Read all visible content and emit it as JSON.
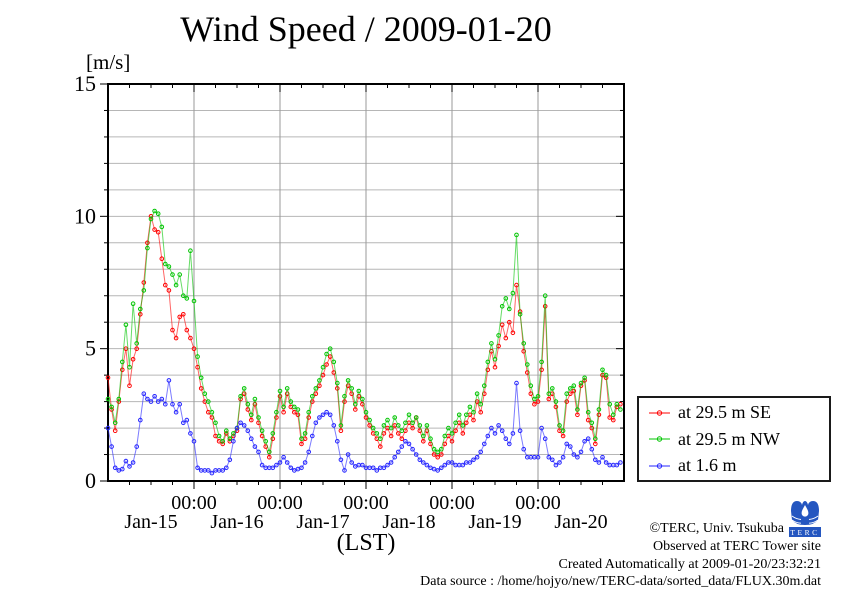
{
  "title": "Wind Speed / 2009-01-20",
  "y_axis": {
    "unit_label": "[m/s]",
    "min": 0,
    "max": 15,
    "major_ticks": [
      0,
      5,
      10,
      15
    ],
    "minor_step": 1
  },
  "x_axis": {
    "label": "(LST)",
    "midnight_label": "00:00",
    "day_labels": [
      "Jan-15",
      "Jan-16",
      "Jan-17",
      "Jan-18",
      "Jan-19",
      "Jan-20"
    ],
    "minor_tick_hours": 6
  },
  "legend": {
    "items": [
      {
        "label": "at 29.5 m SE",
        "color": "#ff0000"
      },
      {
        "label": "at 29.5 m NW",
        "color": "#00c400"
      },
      {
        "label": "at 1.6 m",
        "color": "#2424ff"
      }
    ]
  },
  "footer": {
    "copyright": "©TERC, Univ. Tsukuba",
    "observed": "Observed at TERC Tower site",
    "created": "Created Automatically at 2009-01-20/23:32:21",
    "datasource": "Data source : /home/hojyo/new/TERC-data/sorted_data/FLUX.30m.dat",
    "logo_text": "TERC",
    "logo_color": "#2456c0"
  },
  "chart_data": {
    "type": "line",
    "title": "Wind Speed / 2009-01-20",
    "xlabel": "(LST)",
    "ylabel": "m/s",
    "ylim": [
      0,
      15
    ],
    "grid": true,
    "legend_position": "outside-right-bottom",
    "x_start": "Jan-15 00:00",
    "x_end": "Jan-21 00:00",
    "sample_interval_hours": 1,
    "day_labels": [
      "Jan-15",
      "Jan-16",
      "Jan-17",
      "Jan-18",
      "Jan-19",
      "Jan-20"
    ],
    "series": [
      {
        "name": "at 29.5 m SE",
        "color": "#ff0000",
        "values": [
          3.9,
          2.7,
          1.9,
          3.0,
          4.2,
          5.0,
          3.6,
          4.6,
          5.0,
          6.3,
          7.5,
          9.0,
          10.0,
          9.5,
          9.4,
          8.4,
          7.4,
          7.2,
          5.7,
          5.4,
          6.2,
          6.3,
          5.7,
          5.4,
          5.0,
          4.3,
          3.5,
          3.0,
          2.6,
          2.4,
          1.7,
          1.5,
          1.4,
          1.8,
          1.5,
          1.7,
          1.9,
          3.1,
          3.3,
          2.7,
          2.3,
          2.9,
          2.2,
          1.7,
          1.3,
          0.9,
          1.6,
          2.4,
          3.2,
          2.6,
          3.3,
          2.8,
          2.6,
          2.5,
          1.4,
          1.6,
          2.4,
          3.0,
          3.3,
          3.6,
          4.0,
          4.4,
          4.7,
          4.1,
          3.5,
          1.9,
          3.0,
          3.6,
          3.3,
          2.7,
          3.2,
          2.9,
          2.4,
          2.1,
          1.8,
          1.6,
          1.3,
          1.8,
          2.0,
          1.7,
          2.1,
          1.8,
          1.6,
          1.9,
          2.2,
          2.0,
          2.4,
          1.9,
          1.5,
          1.9,
          1.4,
          1.0,
          0.9,
          1.0,
          1.4,
          1.7,
          1.5,
          1.9,
          2.2,
          1.8,
          2.2,
          2.5,
          2.3,
          3.0,
          2.6,
          3.3,
          4.2,
          4.9,
          4.3,
          5.1,
          5.9,
          5.4,
          6.0,
          5.6,
          7.4,
          6.4,
          4.9,
          4.1,
          3.3,
          2.9,
          3.0,
          4.2,
          6.6,
          3.1,
          3.3,
          2.8,
          1.9,
          1.7,
          3.0,
          3.3,
          3.4,
          2.5,
          3.6,
          3.8,
          2.3,
          2.0,
          1.4,
          2.5,
          4.0,
          3.9,
          2.4,
          2.3,
          2.8,
          2.9
        ]
      },
      {
        "name": "at 29.5 m NW",
        "color": "#00c400",
        "values": [
          3.1,
          2.8,
          2.2,
          3.1,
          4.5,
          5.9,
          4.3,
          6.7,
          5.2,
          6.5,
          7.2,
          8.8,
          9.9,
          10.2,
          10.1,
          9.6,
          8.2,
          8.1,
          7.8,
          7.4,
          7.8,
          7.0,
          6.9,
          8.7,
          6.8,
          4.7,
          3.9,
          3.3,
          3.0,
          2.6,
          2.2,
          1.7,
          1.5,
          1.9,
          1.6,
          1.8,
          2.0,
          3.2,
          3.5,
          2.9,
          2.5,
          3.1,
          2.4,
          1.9,
          1.5,
          1.1,
          1.8,
          2.6,
          3.4,
          2.8,
          3.5,
          3.0,
          2.8,
          2.7,
          1.6,
          1.8,
          2.6,
          3.2,
          3.5,
          3.8,
          4.3,
          4.8,
          5.0,
          4.5,
          3.7,
          2.1,
          3.2,
          3.8,
          3.5,
          2.9,
          3.4,
          3.1,
          2.6,
          2.3,
          2.0,
          1.8,
          1.6,
          2.1,
          2.3,
          2.0,
          2.4,
          2.1,
          1.9,
          2.2,
          2.5,
          2.2,
          2.4,
          2.1,
          1.7,
          2.1,
          1.6,
          1.2,
          1.1,
          1.2,
          1.7,
          2.0,
          1.8,
          2.2,
          2.5,
          2.1,
          2.5,
          2.8,
          2.6,
          3.3,
          2.9,
          3.6,
          4.5,
          5.2,
          4.6,
          5.5,
          6.6,
          6.9,
          6.5,
          7.1,
          9.3,
          6.3,
          5.2,
          4.4,
          3.6,
          3.1,
          3.2,
          4.5,
          7.0,
          3.3,
          3.5,
          3.0,
          2.1,
          1.9,
          3.3,
          3.5,
          3.6,
          2.7,
          3.7,
          3.9,
          2.6,
          2.2,
          1.6,
          2.7,
          4.2,
          4.0,
          2.9,
          2.5,
          2.9,
          2.7
        ]
      },
      {
        "name": "at 1.6 m",
        "color": "#2424ff",
        "values": [
          2.0,
          1.3,
          0.5,
          0.4,
          0.45,
          0.75,
          0.55,
          0.7,
          1.3,
          2.3,
          3.3,
          3.1,
          3.0,
          3.2,
          3.0,
          3.1,
          2.9,
          3.8,
          2.9,
          2.6,
          2.9,
          2.2,
          2.3,
          1.8,
          1.5,
          0.5,
          0.4,
          0.4,
          0.4,
          0.3,
          0.4,
          0.4,
          0.4,
          0.5,
          0.8,
          1.5,
          2.0,
          2.2,
          2.1,
          1.9,
          1.6,
          1.3,
          1.1,
          0.6,
          0.5,
          0.5,
          0.5,
          0.6,
          0.7,
          0.9,
          0.7,
          0.5,
          0.4,
          0.45,
          0.5,
          0.7,
          1.1,
          1.7,
          2.2,
          2.4,
          2.5,
          2.6,
          2.5,
          2.1,
          1.5,
          0.8,
          0.4,
          1.0,
          0.7,
          0.55,
          0.6,
          0.6,
          0.5,
          0.5,
          0.5,
          0.4,
          0.5,
          0.5,
          0.6,
          0.7,
          0.9,
          1.1,
          1.3,
          1.5,
          1.4,
          1.2,
          1.0,
          0.8,
          0.7,
          0.6,
          0.5,
          0.45,
          0.4,
          0.5,
          0.6,
          0.7,
          0.7,
          0.6,
          0.6,
          0.6,
          0.7,
          0.7,
          0.8,
          0.9,
          1.1,
          1.4,
          1.7,
          2.0,
          1.8,
          2.1,
          1.9,
          1.6,
          1.4,
          1.8,
          3.7,
          1.9,
          1.2,
          0.9,
          0.9,
          0.9,
          0.9,
          2.0,
          1.6,
          0.9,
          0.8,
          0.6,
          0.7,
          0.9,
          1.4,
          1.3,
          1.0,
          0.9,
          1.1,
          1.5,
          1.6,
          1.2,
          0.8,
          0.7,
          0.9,
          0.7,
          0.6,
          0.6,
          0.6,
          0.7
        ]
      }
    ]
  }
}
